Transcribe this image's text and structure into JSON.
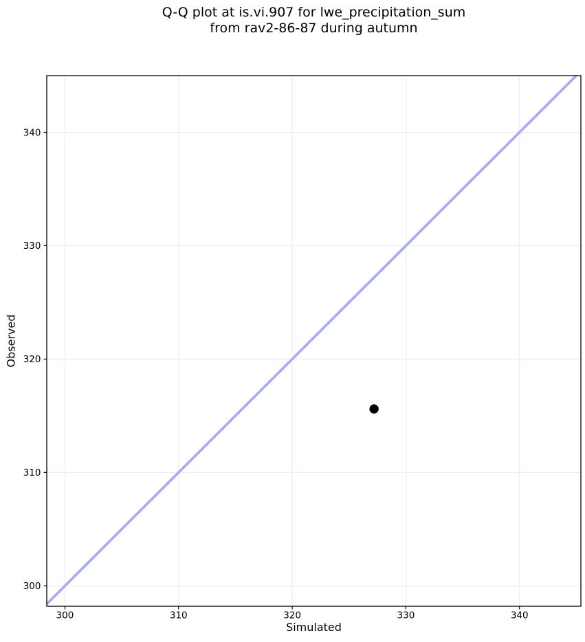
{
  "figure": {
    "title": "Q-Q plot at is.vi.907 for lwe_precipitation_sum\nfrom rav2-86-87 during autumn"
  },
  "chart_data": {
    "type": "scatter",
    "title": "Q-Q plot at is.vi.907 for lwe_precipitation_sum from rav2-86-87 during autumn",
    "xlabel": "Simulated",
    "ylabel": "Observed",
    "xlim": [
      298.4,
      345.4
    ],
    "ylim": [
      298.2,
      345.0
    ],
    "xticks": [
      300,
      310,
      320,
      330,
      340
    ],
    "yticks": [
      300,
      310,
      320,
      330,
      340
    ],
    "grid": true,
    "grid_color": "#ededed",
    "points": [
      {
        "x": 327.2,
        "y": 315.6
      }
    ],
    "point_color": "#000000",
    "point_radius": 6.7,
    "identity_line": {
      "from": 298.4,
      "to": 345.0,
      "color": "#a9aaf2",
      "width": 3.7
    },
    "axis_color": "#000000",
    "tick_label_size": 13.5
  }
}
